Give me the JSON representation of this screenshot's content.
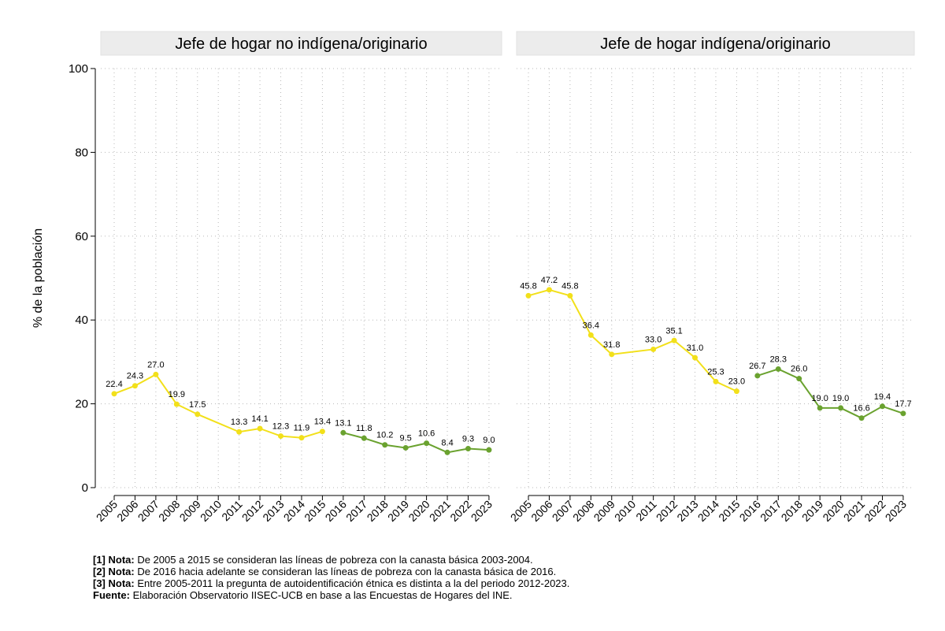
{
  "chart_data": {
    "type": "line",
    "ylabel": "% de la población",
    "ylim": [
      0,
      100
    ],
    "yticks": [
      0,
      20,
      40,
      60,
      80,
      100
    ],
    "categories": [
      "2005",
      "2006",
      "2007",
      "2008",
      "2009",
      "2010",
      "2011",
      "2012",
      "2013",
      "2014",
      "2015",
      "2016",
      "2017",
      "2018",
      "2019",
      "2020",
      "2021",
      "2022",
      "2023"
    ],
    "colors": {
      "period_2005_2015": "#f2e01a",
      "period_2016_2023": "#6aa22f",
      "panel_header_bg": "#ececec"
    },
    "panels": [
      {
        "title": "Jefe de hogar no indígena/originario",
        "series": [
          {
            "name": "2005-2015",
            "color": "#f2e01a",
            "points": [
              [
                2005,
                22.4
              ],
              [
                2006,
                24.3
              ],
              [
                2007,
                27.0
              ],
              [
                2008,
                19.9
              ],
              [
                2009,
                17.5
              ],
              [
                2011,
                13.3
              ],
              [
                2012,
                14.1
              ],
              [
                2013,
                12.3
              ],
              [
                2014,
                11.9
              ],
              [
                2015,
                13.4
              ]
            ]
          },
          {
            "name": "2016-2023",
            "color": "#6aa22f",
            "points": [
              [
                2016,
                13.1
              ],
              [
                2017,
                11.8
              ],
              [
                2018,
                10.2
              ],
              [
                2019,
                9.5
              ],
              [
                2020,
                10.6
              ],
              [
                2021,
                8.4
              ],
              [
                2022,
                9.3
              ],
              [
                2023,
                9.0
              ]
            ]
          }
        ]
      },
      {
        "title": "Jefe de hogar indígena/originario",
        "series": [
          {
            "name": "2005-2015",
            "color": "#f2e01a",
            "points": [
              [
                2005,
                45.8
              ],
              [
                2006,
                47.2
              ],
              [
                2007,
                45.8
              ],
              [
                2008,
                36.4
              ],
              [
                2009,
                31.8
              ],
              [
                2011,
                33.0
              ],
              [
                2012,
                35.1
              ],
              [
                2013,
                31.0
              ],
              [
                2014,
                25.3
              ],
              [
                2015,
                23.0
              ]
            ]
          },
          {
            "name": "2016-2023",
            "color": "#6aa22f",
            "points": [
              [
                2016,
                26.7
              ],
              [
                2017,
                28.3
              ],
              [
                2018,
                26.0
              ],
              [
                2019,
                19.0
              ],
              [
                2020,
                19.0
              ],
              [
                2021,
                16.6
              ],
              [
                2022,
                19.4
              ],
              [
                2023,
                17.7
              ]
            ]
          }
        ]
      }
    ]
  },
  "notes": [
    {
      "label": "[1] Nota:",
      "text": " De 2005 a 2015 se consideran las líneas de pobreza con la canasta básica 2003-2004."
    },
    {
      "label": "[2] Nota:",
      "text": " De 2016 hacia adelante se consideran las líneas de pobreza con la canasta básica de 2016."
    },
    {
      "label": "[3] Nota:",
      "text": " Entre 2005-2011 la pregunta de autoidentificación étnica es distinta a la del periodo 2012-2023."
    },
    {
      "label": "Fuente:",
      "text": " Elaboración Observatorio IISEC-UCB en base a las Encuestas de Hogares del INE."
    }
  ]
}
